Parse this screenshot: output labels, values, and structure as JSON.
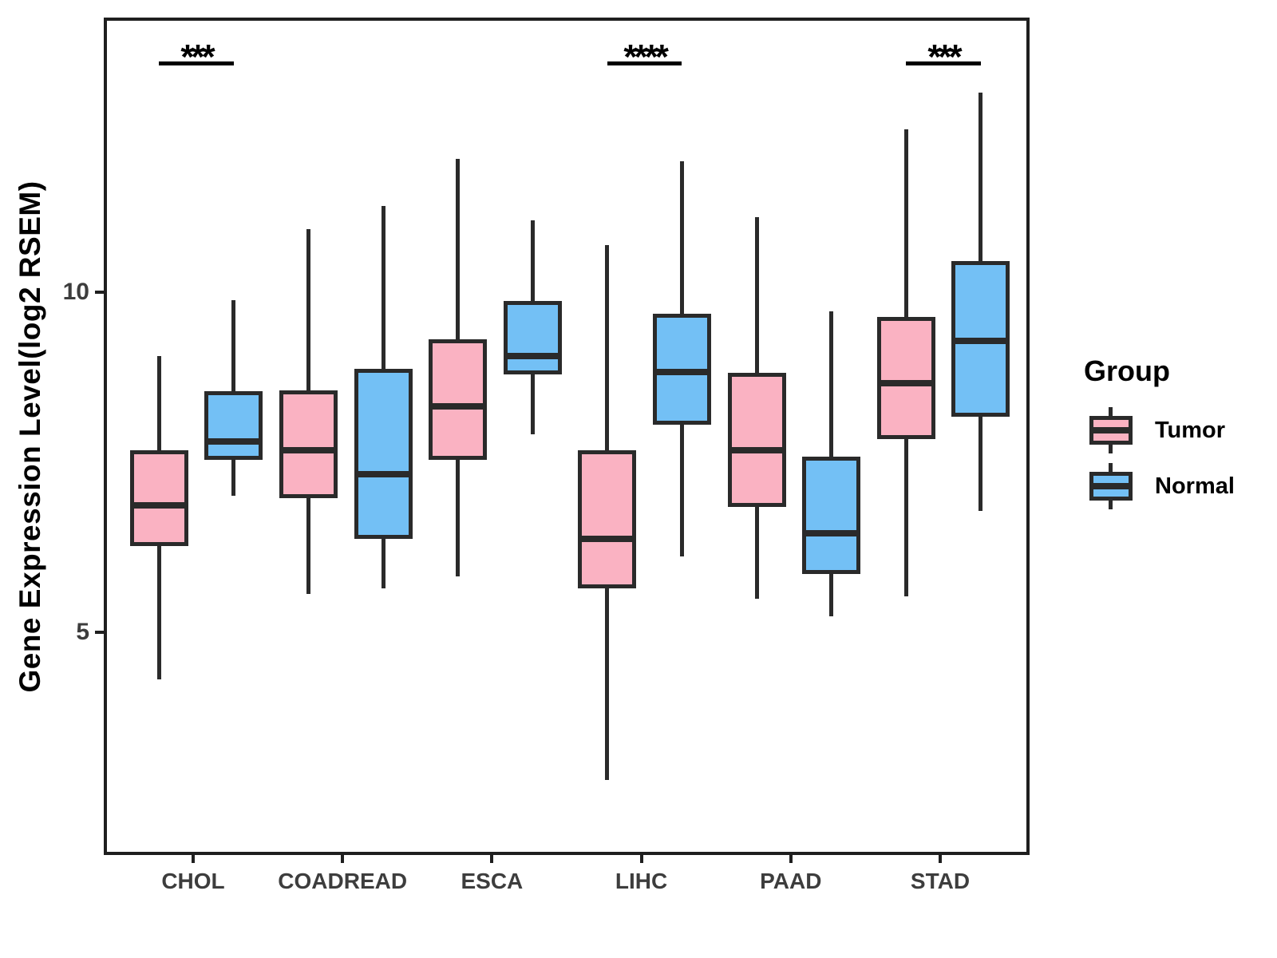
{
  "chart_data": {
    "type": "boxplot",
    "title": "",
    "xlabel": "",
    "ylabel": "Gene Expression Level(log2 RSEM)",
    "categories": [
      "CHOL",
      "COADREAD",
      "ESCA",
      "LIHC",
      "PAAD",
      "STAD"
    ],
    "yticks": [
      {
        "label": "10",
        "value": 10
      },
      {
        "label": "5",
        "value": 5
      }
    ],
    "ylim": [
      1.7,
      14.0
    ],
    "grid": false,
    "legend": {
      "title": "Group",
      "position": "right"
    },
    "colors": {
      "stroke": "#2a2a2a",
      "tumor_fill": "#FAB2C2",
      "normal_fill": "#73C0F5",
      "axis_text": "#3d3d3d",
      "annotation": "#000000"
    },
    "series": [
      {
        "name": "Tumor",
        "fill": "#FAB2C2",
        "boxes": [
          {
            "category": "CHOL",
            "min": 4.35,
            "q1": 6.31,
            "median": 6.91,
            "q3": 7.72,
            "max": 9.11
          },
          {
            "category": "COADREAD",
            "min": 5.61,
            "q1": 7.02,
            "median": 7.72,
            "q3": 8.6,
            "max": 10.97
          },
          {
            "category": "ESCA",
            "min": 5.87,
            "q1": 7.58,
            "median": 8.37,
            "q3": 9.35,
            "max": 12.01
          },
          {
            "category": "LIHC",
            "min": 2.88,
            "q1": 5.69,
            "median": 6.42,
            "q3": 7.72,
            "max": 10.74
          },
          {
            "category": "PAAD",
            "min": 5.54,
            "q1": 6.89,
            "median": 7.72,
            "q3": 8.86,
            "max": 11.15
          },
          {
            "category": "STAD",
            "min": 5.58,
            "q1": 7.89,
            "median": 8.71,
            "q3": 9.68,
            "max": 12.44
          }
        ]
      },
      {
        "name": "Normal",
        "fill": "#73C0F5",
        "boxes": [
          {
            "category": "CHOL",
            "min": 7.05,
            "q1": 7.58,
            "median": 7.85,
            "q3": 8.59,
            "max": 9.93
          },
          {
            "category": "COADREAD",
            "min": 5.69,
            "q1": 6.42,
            "median": 7.37,
            "q3": 8.92,
            "max": 11.31
          },
          {
            "category": "ESCA",
            "min": 7.96,
            "q1": 8.84,
            "median": 9.11,
            "q3": 9.92,
            "max": 11.1
          },
          {
            "category": "LIHC",
            "min": 6.16,
            "q1": 8.1,
            "median": 8.87,
            "q3": 9.73,
            "max": 11.97
          },
          {
            "category": "PAAD",
            "min": 5.28,
            "q1": 5.9,
            "median": 6.5,
            "q3": 7.63,
            "max": 9.76
          },
          {
            "category": "STAD",
            "min": 6.83,
            "q1": 8.22,
            "median": 9.33,
            "q3": 10.5,
            "max": 12.98
          }
        ]
      }
    ],
    "annotations": [
      {
        "category": "CHOL",
        "label": "***"
      },
      {
        "category": "LIHC",
        "label": "****"
      },
      {
        "category": "STAD",
        "label": "***"
      }
    ]
  }
}
